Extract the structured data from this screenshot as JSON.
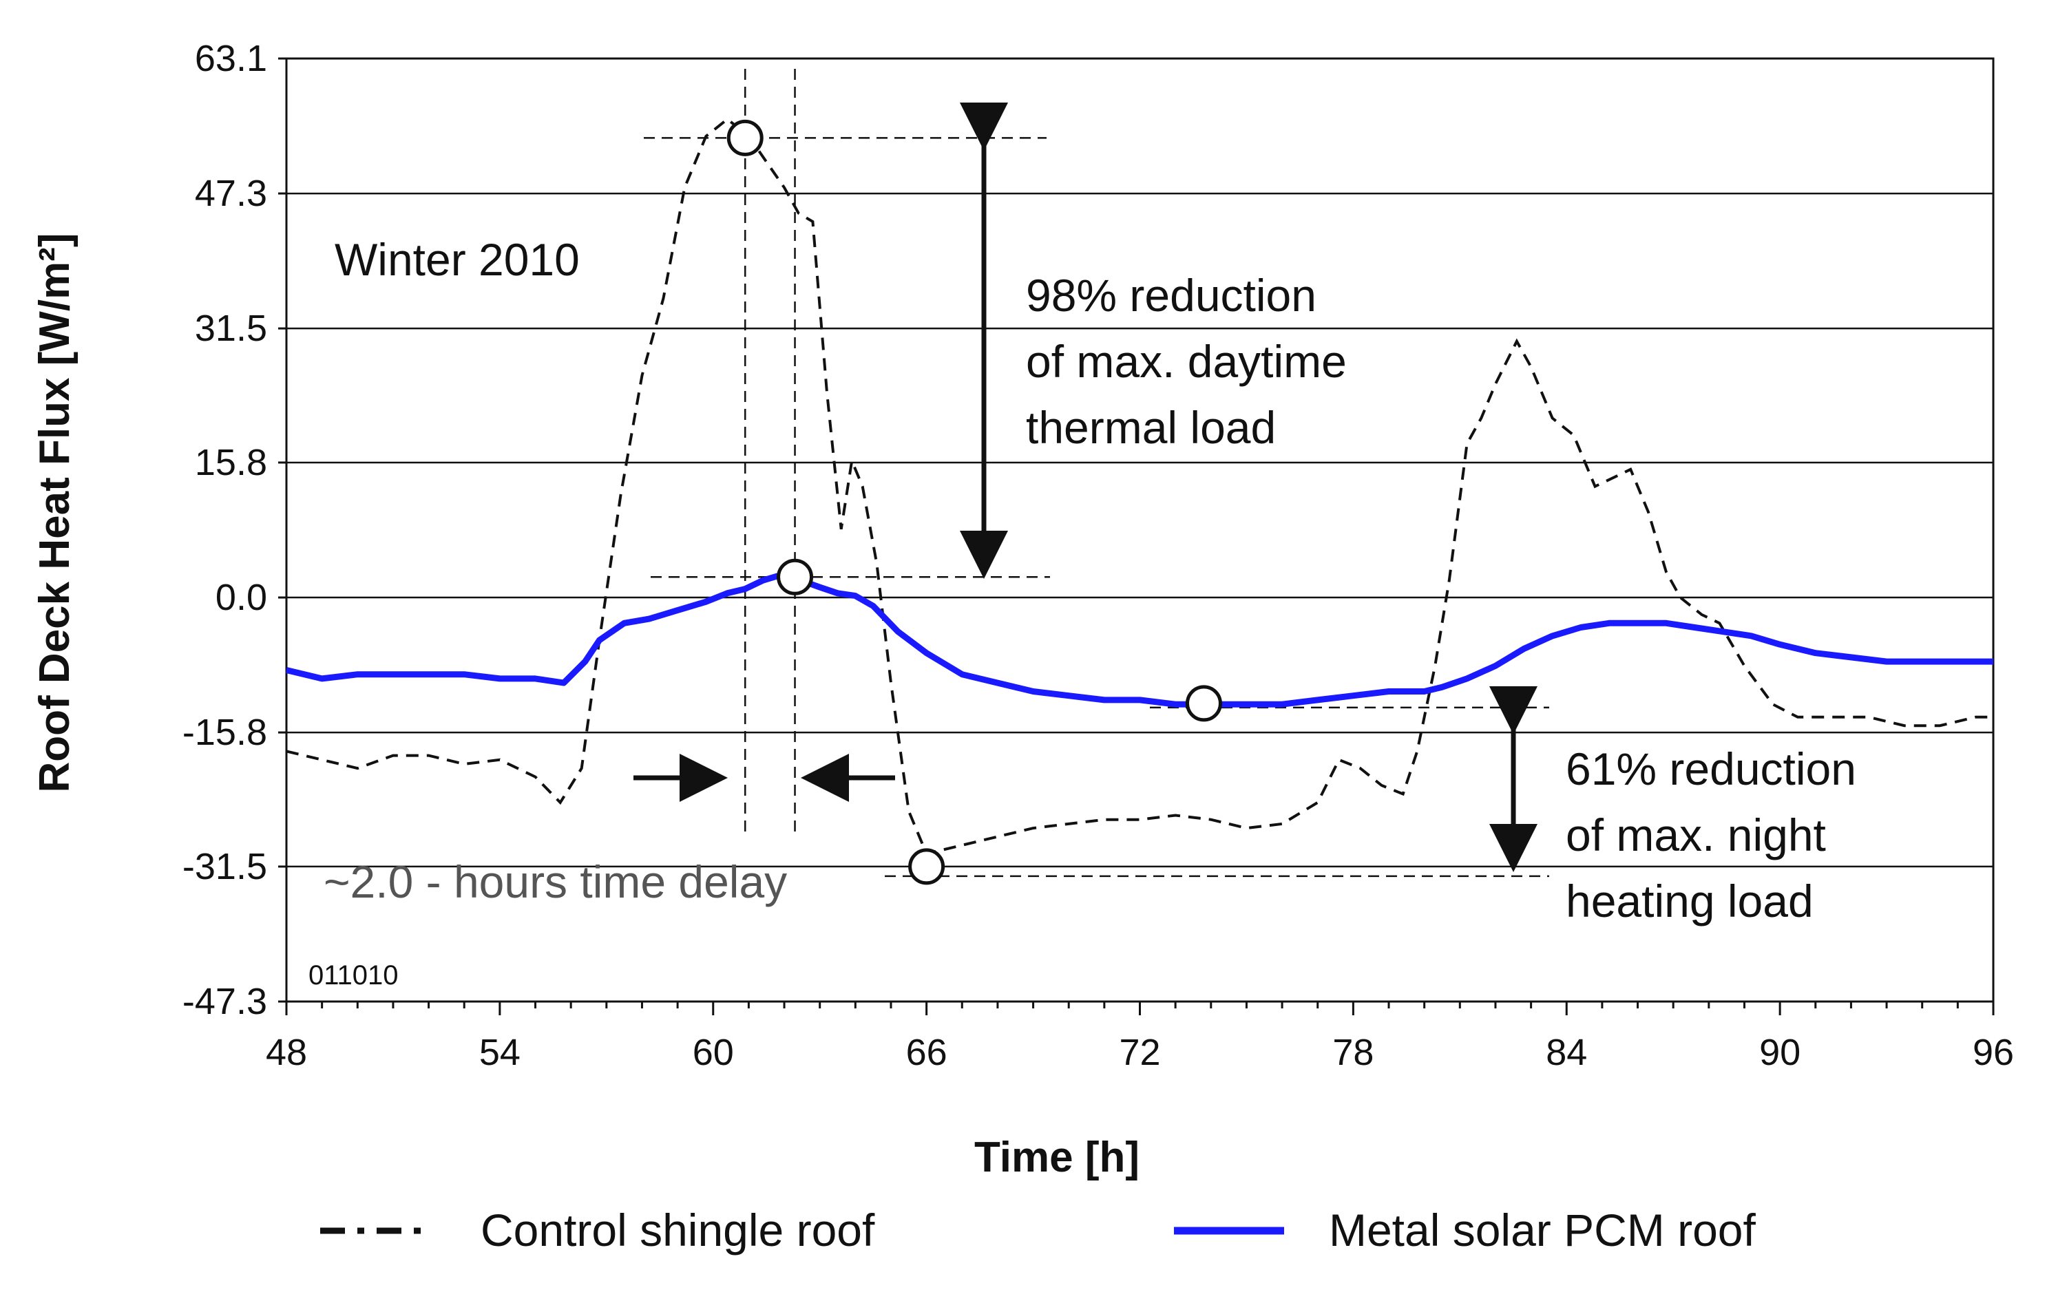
{
  "chart_data": {
    "type": "line",
    "title": "",
    "xlabel": "Time [h]",
    "ylabel": "Roof Deck Heat Flux [W/m²]",
    "xlim": [
      48,
      96
    ],
    "ylim": [
      -47.3,
      63.1
    ],
    "x_ticks": [
      48,
      54,
      60,
      66,
      72,
      78,
      84,
      90,
      96
    ],
    "x_tick_labels": [
      "48",
      "54",
      "60",
      "66",
      "72",
      "78",
      "84",
      "90",
      "96"
    ],
    "y_ticks": [
      63.1,
      47.3,
      31.5,
      15.8,
      0.0,
      -15.8,
      -31.5,
      -47.3
    ],
    "y_tick_labels": [
      "63.1",
      "47.3",
      "31.5",
      "15.8",
      "0.0",
      "-15.8",
      "-31.5",
      "-47.3"
    ],
    "grid": "horizontal",
    "legend_position": "bottom",
    "series": [
      {
        "name": "Control shingle roof",
        "style": "dashed",
        "color": "#111111",
        "x": [
          48,
          49,
          50,
          51,
          52,
          53,
          54,
          55,
          55.7,
          56.3,
          56.8,
          57.4,
          58,
          58.6,
          59.2,
          59.8,
          60.4,
          61,
          61.5,
          62,
          62.4,
          62.8,
          63.2,
          63.6,
          63.9,
          64.2,
          64.6,
          65,
          65.5,
          66,
          67,
          68,
          69,
          70,
          71,
          72,
          73,
          74,
          75,
          76,
          77,
          77.6,
          78.2,
          78.8,
          79.4,
          79.8,
          80.3,
          80.7,
          81.2,
          81.6,
          82,
          82.6,
          83,
          83.6,
          84.2,
          84.8,
          85.3,
          85.8,
          86.3,
          86.8,
          87.2,
          87.8,
          88.3,
          89,
          89.8,
          90.5,
          91.5,
          92.5,
          93.5,
          94.5,
          95.5,
          96
        ],
        "values": [
          -18,
          -19,
          -20,
          -18.5,
          -18.5,
          -19.5,
          -19,
          -21,
          -24,
          -20,
          -5,
          12,
          26,
          35,
          48,
          54,
          56,
          54,
          51,
          48,
          45,
          44,
          24,
          8,
          16,
          13,
          4,
          -10,
          -25,
          -30,
          -29,
          -28,
          -27,
          -26.5,
          -26,
          -26,
          -25.5,
          -26,
          -27,
          -26.5,
          -24,
          -19,
          -20,
          -22,
          -23,
          -18,
          -8,
          2,
          18,
          21,
          25,
          30,
          27,
          21,
          19,
          13,
          14,
          15,
          10,
          3,
          0,
          -2,
          -3,
          -8,
          -12.5,
          -14,
          -14,
          -14,
          -15,
          -15,
          -14,
          -14
        ]
      },
      {
        "name": "Metal solar PCM roof",
        "style": "solid",
        "color": "#1a1aff",
        "x": [
          48,
          49,
          50,
          51,
          52,
          53,
          54,
          55,
          55.8,
          56.4,
          56.8,
          57.5,
          58.2,
          59,
          59.8,
          60.4,
          60.9,
          61.4,
          61.8,
          62.2,
          62.6,
          63,
          63.5,
          64,
          64.5,
          65.2,
          66,
          67,
          68,
          69,
          70,
          71,
          72,
          73,
          74,
          75,
          76,
          77,
          78,
          79,
          80,
          80.5,
          81.2,
          82,
          82.8,
          83.6,
          84.4,
          85.2,
          86,
          86.8,
          87.6,
          88.4,
          89.2,
          90,
          91,
          92,
          93,
          94,
          95,
          96
        ],
        "values": [
          -8.5,
          -9.5,
          -9,
          -9,
          -9,
          -9,
          -9.5,
          -9.5,
          -10,
          -7.5,
          -5,
          -3,
          -2.5,
          -1.5,
          -0.5,
          0.5,
          1.0,
          2.0,
          2.5,
          2.3,
          1.8,
          1.2,
          0.5,
          0.2,
          -1,
          -4,
          -6.5,
          -9,
          -10,
          -11,
          -11.5,
          -12,
          -12,
          -12.5,
          -12.5,
          -12.5,
          -12.5,
          -12,
          -11.5,
          -11,
          -11,
          -10.5,
          -9.5,
          -8,
          -6,
          -4.5,
          -3.5,
          -3,
          -3,
          -3,
          -3.5,
          -4,
          -4.5,
          -5.5,
          -6.5,
          -7,
          -7.5,
          -7.5,
          -7.5,
          -7.5
        ]
      }
    ],
    "markers": [
      {
        "x": 60.9,
        "y": 53.8
      },
      {
        "x": 62.3,
        "y": 2.4
      },
      {
        "x": 66.0,
        "y": -31.5
      },
      {
        "x": 73.8,
        "y": -12.4
      }
    ],
    "annotations": {
      "season": "Winter 2010",
      "daytime": [
        "98% reduction",
        "of max. daytime",
        "thermal load"
      ],
      "night": [
        "61% reduction",
        "of max. night",
        "heating load"
      ],
      "delay": "~2.0 - hours time delay",
      "code": "011010"
    }
  }
}
